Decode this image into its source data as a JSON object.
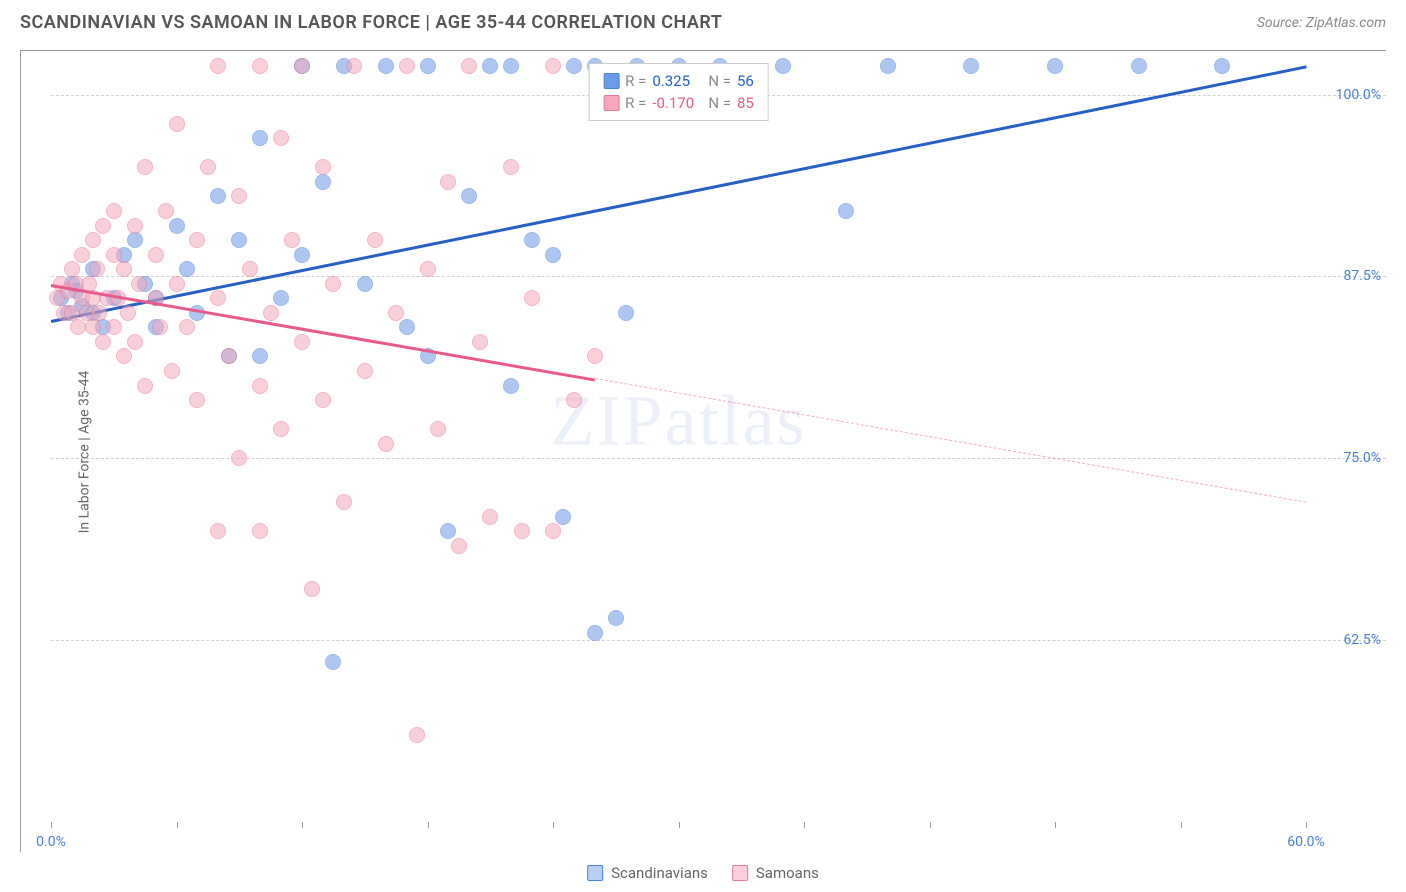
{
  "title": "SCANDINAVIAN VS SAMOAN IN LABOR FORCE | AGE 35-44 CORRELATION CHART",
  "source": "Source: ZipAtlas.com",
  "watermark": "ZIPatlas",
  "chart": {
    "type": "scatter",
    "ylabel": "In Labor Force | Age 35-44",
    "xlim": [
      0,
      60
    ],
    "ylim": [
      50,
      103
    ],
    "xtick_positions": [
      0,
      6,
      12,
      18,
      24,
      30,
      36,
      42,
      48,
      54,
      60
    ],
    "xtick_labels": {
      "0": "0.0%",
      "60": "60.0%"
    },
    "ytick_positions": [
      62.5,
      75.0,
      87.5,
      100.0
    ],
    "ytick_labels": [
      "62.5%",
      "75.0%",
      "87.5%",
      "100.0%"
    ],
    "background_color": "#ffffff",
    "grid_color": "#d0d0d0",
    "axis_color": "#999999",
    "label_fontsize": 14,
    "tick_color": "#4a7fd8",
    "marker_radius": 8,
    "marker_opacity": 0.55,
    "series": [
      {
        "name": "Scandinavians",
        "color": "#6b9be8",
        "border": "#4a7fd8",
        "R": "0.325",
        "N": "56",
        "trend": {
          "x1": 0,
          "y1": 84.5,
          "x2": 60,
          "y2": 102,
          "color": "#2560c4",
          "width": 2.5,
          "solid_until_x": 60
        },
        "points": [
          [
            0.5,
            86
          ],
          [
            0.8,
            85
          ],
          [
            1,
            87
          ],
          [
            1.2,
            86.5
          ],
          [
            1.5,
            85.5
          ],
          [
            2,
            88
          ],
          [
            2,
            85
          ],
          [
            2.5,
            84
          ],
          [
            3,
            86
          ],
          [
            3.5,
            89
          ],
          [
            4,
            90
          ],
          [
            4.5,
            87
          ],
          [
            5,
            86
          ],
          [
            5,
            84
          ],
          [
            6,
            91
          ],
          [
            6.5,
            88
          ],
          [
            7,
            85
          ],
          [
            8,
            93
          ],
          [
            8.5,
            82
          ],
          [
            9,
            90
          ],
          [
            10,
            97
          ],
          [
            10,
            82
          ],
          [
            11,
            86
          ],
          [
            12,
            102
          ],
          [
            12,
            89
          ],
          [
            13,
            94
          ],
          [
            13.5,
            61
          ],
          [
            14,
            102
          ],
          [
            15,
            87
          ],
          [
            16,
            102
          ],
          [
            17,
            84
          ],
          [
            18,
            102
          ],
          [
            18,
            82
          ],
          [
            19,
            70
          ],
          [
            20,
            93
          ],
          [
            21,
            102
          ],
          [
            22,
            80
          ],
          [
            22,
            102
          ],
          [
            23,
            90
          ],
          [
            24,
            89
          ],
          [
            24.5,
            71
          ],
          [
            25,
            102
          ],
          [
            26,
            63
          ],
          [
            26,
            102
          ],
          [
            27,
            64
          ],
          [
            27.5,
            85
          ],
          [
            28,
            102
          ],
          [
            30,
            102
          ],
          [
            32,
            102
          ],
          [
            35,
            102
          ],
          [
            38,
            92
          ],
          [
            40,
            102
          ],
          [
            44,
            102
          ],
          [
            48,
            102
          ],
          [
            52,
            102
          ],
          [
            56,
            102
          ]
        ]
      },
      {
        "name": "Samoans",
        "color": "#f5a8bc",
        "border": "#e87a9a",
        "R": "-0.170",
        "N": "85",
        "trend": {
          "x1": 0,
          "y1": 87,
          "x2": 60,
          "y2": 72,
          "color": "#e85a8a",
          "width": 2.5,
          "solid_until_x": 26
        },
        "points": [
          [
            0.3,
            86
          ],
          [
            0.5,
            87
          ],
          [
            0.6,
            85
          ],
          [
            0.8,
            86.5
          ],
          [
            1,
            88
          ],
          [
            1,
            85
          ],
          [
            1.2,
            87
          ],
          [
            1.3,
            84
          ],
          [
            1.5,
            89
          ],
          [
            1.5,
            86
          ],
          [
            1.7,
            85
          ],
          [
            1.8,
            87
          ],
          [
            2,
            90
          ],
          [
            2,
            84
          ],
          [
            2,
            86
          ],
          [
            2.2,
            88
          ],
          [
            2.3,
            85
          ],
          [
            2.5,
            91
          ],
          [
            2.5,
            83
          ],
          [
            2.7,
            86
          ],
          [
            3,
            89
          ],
          [
            3,
            84
          ],
          [
            3,
            92
          ],
          [
            3.2,
            86
          ],
          [
            3.5,
            82
          ],
          [
            3.5,
            88
          ],
          [
            3.7,
            85
          ],
          [
            4,
            91
          ],
          [
            4,
            83
          ],
          [
            4.2,
            87
          ],
          [
            4.5,
            95
          ],
          [
            4.5,
            80
          ],
          [
            5,
            86
          ],
          [
            5,
            89
          ],
          [
            5.2,
            84
          ],
          [
            5.5,
            92
          ],
          [
            5.8,
            81
          ],
          [
            6,
            87
          ],
          [
            6,
            98
          ],
          [
            6.5,
            84
          ],
          [
            7,
            90
          ],
          [
            7,
            79
          ],
          [
            7.5,
            95
          ],
          [
            8,
            86
          ],
          [
            8,
            102
          ],
          [
            8.5,
            82
          ],
          [
            9,
            93
          ],
          [
            9,
            75
          ],
          [
            9.5,
            88
          ],
          [
            10,
            102
          ],
          [
            10,
            80
          ],
          [
            10.5,
            85
          ],
          [
            11,
            97
          ],
          [
            11,
            77
          ],
          [
            11.5,
            90
          ],
          [
            12,
            102
          ],
          [
            12,
            83
          ],
          [
            12.5,
            66
          ],
          [
            13,
            95
          ],
          [
            13,
            79
          ],
          [
            13.5,
            87
          ],
          [
            14,
            72
          ],
          [
            14.5,
            102
          ],
          [
            15,
            81
          ],
          [
            15.5,
            90
          ],
          [
            16,
            76
          ],
          [
            16.5,
            85
          ],
          [
            17,
            102
          ],
          [
            17.5,
            56
          ],
          [
            18,
            88
          ],
          [
            18.5,
            77
          ],
          [
            19,
            94
          ],
          [
            19.5,
            69
          ],
          [
            20,
            102
          ],
          [
            20.5,
            83
          ],
          [
            21,
            71
          ],
          [
            22,
            95
          ],
          [
            22.5,
            70
          ],
          [
            23,
            86
          ],
          [
            24,
            102
          ],
          [
            24,
            70
          ],
          [
            25,
            79
          ],
          [
            26,
            82
          ],
          [
            8,
            70
          ],
          [
            10,
            70
          ]
        ]
      }
    ]
  },
  "legend_bottom": [
    {
      "label": "Scandinavians",
      "fill": "#b8d0f0",
      "border": "#4a7fd8"
    },
    {
      "label": "Samoans",
      "fill": "#fad0dc",
      "border": "#e87a9a"
    }
  ]
}
